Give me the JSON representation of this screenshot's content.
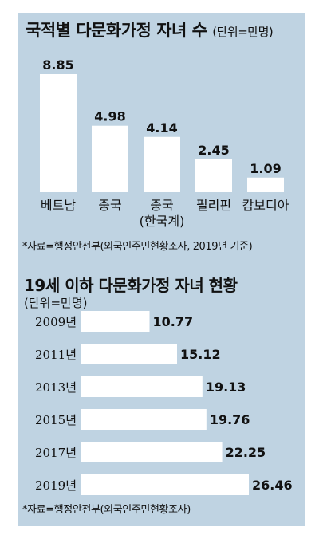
{
  "top": {
    "title": "국적별 다문화가정 자녀 수",
    "unit": "(단위=만명)",
    "source": "*자료=행정안전부(외국인주민현황조사, 2019년 기준)"
  },
  "bottom": {
    "title": "19세 이하 다문화가정 자녀 현황",
    "unit": "(단위=만명)",
    "source": "*자료=행정안전부(외국인주민현황조사)"
  },
  "colors": {
    "panel": "#bfd3e2",
    "bar": "#ffffff"
  },
  "chart_data": [
    {
      "type": "bar",
      "title": "국적별 다문화가정 자녀 수",
      "unit": "(단위=만명)",
      "categories": [
        [
          "베트남"
        ],
        [
          "중국"
        ],
        [
          "중국",
          "(한국계)"
        ],
        [
          "필리핀"
        ],
        [
          "캄보디아"
        ]
      ],
      "values": [
        8.85,
        4.98,
        4.14,
        2.45,
        1.09
      ],
      "value_labels": [
        "8.85",
        "4.98",
        "4.14",
        "2.45",
        "1.09"
      ],
      "ylim": [
        0,
        8.85
      ],
      "grid": false,
      "legend": "none"
    },
    {
      "type": "bar",
      "orientation": "horizontal",
      "title": "19세 이하 다문화가정 자녀 현황",
      "unit": "(단위=만명)",
      "categories": [
        "2009년",
        "2011년",
        "2013년",
        "2015년",
        "2017년",
        "2019년"
      ],
      "values": [
        10.77,
        15.12,
        19.13,
        19.76,
        22.25,
        26.46
      ],
      "value_labels": [
        "10.77",
        "15.12",
        "19.13",
        "19.76",
        "22.25",
        "26.46"
      ],
      "xlim": [
        0,
        26.46
      ],
      "grid": false,
      "legend": "none"
    }
  ]
}
